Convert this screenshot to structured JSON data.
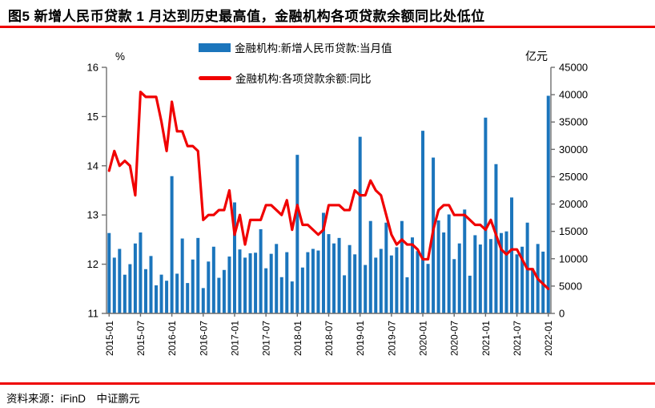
{
  "title": "图5 新增人民币贷款 1 月达到历史最高值，金融机构各项贷款余额同比处低位",
  "source": "资料来源：iFinD　中证鹏元",
  "colors": {
    "accent_red": "#ee0000",
    "bar_blue": "#1b75bc",
    "line_red": "#f00000",
    "axis_gray": "#6e6e6e",
    "text_black": "#000000"
  },
  "legend": [
    {
      "label": "金融机构:新增人民币贷款:当月值",
      "type": "bar"
    },
    {
      "label": "金融机构:各项贷款余额:同比",
      "type": "line"
    }
  ],
  "chart_data": {
    "type": "bar",
    "subtype": "bar+line dual-axis",
    "months": [
      "2015-01",
      "2015-02",
      "2015-03",
      "2015-04",
      "2015-05",
      "2015-06",
      "2015-07",
      "2015-08",
      "2015-09",
      "2015-10",
      "2015-11",
      "2015-12",
      "2016-01",
      "2016-02",
      "2016-03",
      "2016-04",
      "2016-05",
      "2016-06",
      "2016-07",
      "2016-08",
      "2016-09",
      "2016-10",
      "2016-11",
      "2016-12",
      "2017-01",
      "2017-02",
      "2017-03",
      "2017-04",
      "2017-05",
      "2017-06",
      "2017-07",
      "2017-08",
      "2017-09",
      "2017-10",
      "2017-11",
      "2017-12",
      "2018-01",
      "2018-02",
      "2018-03",
      "2018-04",
      "2018-05",
      "2018-06",
      "2018-07",
      "2018-08",
      "2018-09",
      "2018-10",
      "2018-11",
      "2018-12",
      "2019-01",
      "2019-02",
      "2019-03",
      "2019-04",
      "2019-05",
      "2019-06",
      "2019-07",
      "2019-08",
      "2019-09",
      "2019-10",
      "2019-11",
      "2019-12",
      "2020-01",
      "2020-02",
      "2020-03",
      "2020-04",
      "2020-05",
      "2020-06",
      "2020-07",
      "2020-08",
      "2020-09",
      "2020-10",
      "2020-11",
      "2020-12",
      "2021-01",
      "2021-02",
      "2021-03",
      "2021-04",
      "2021-05",
      "2021-06",
      "2021-07",
      "2021-08",
      "2021-09",
      "2021-10",
      "2021-11",
      "2021-12",
      "2022-01"
    ],
    "x_tick_labels": [
      "2015-01",
      "2015-07",
      "2016-01",
      "2016-07",
      "2017-01",
      "2017-07",
      "2018-01",
      "2018-07",
      "2019-01",
      "2019-07",
      "2020-01",
      "2020-07",
      "2021-01",
      "2021-07",
      "2022-01"
    ],
    "series": [
      {
        "name": "金融机构:新增人民币贷款:当月值",
        "type": "bar",
        "axis": "right",
        "unit": "亿元",
        "values": [
          14700,
          10200,
          11800,
          7079,
          9008,
          12791,
          14800,
          8096,
          10500,
          5136,
          7089,
          5978,
          25100,
          7266,
          13700,
          5556,
          9855,
          13800,
          4636,
          9487,
          12200,
          6513,
          7946,
          10400,
          20300,
          11700,
          10200,
          11000,
          11100,
          15400,
          8255,
          10900,
          12700,
          6632,
          11200,
          5844,
          29000,
          8393,
          11200,
          11800,
          11500,
          18400,
          14500,
          12800,
          13800,
          6970,
          12500,
          10800,
          32300,
          8858,
          16900,
          10200,
          11800,
          16600,
          10600,
          12100,
          16900,
          6613,
          13900,
          11400,
          33400,
          9057,
          28500,
          17000,
          14800,
          18100,
          9927,
          12800,
          19000,
          6898,
          14300,
          12600,
          35800,
          13600,
          27300,
          14700,
          15000,
          21200,
          10800,
          12200,
          16600,
          8262,
          12700,
          11300,
          39800
        ]
      },
      {
        "name": "金融机构:各项贷款余额:同比",
        "type": "line",
        "axis": "left",
        "unit": "%",
        "values": [
          13.9,
          14.3,
          14.0,
          14.1,
          14.0,
          13.4,
          15.5,
          15.4,
          15.4,
          15.4,
          14.9,
          14.3,
          15.3,
          14.7,
          14.7,
          14.4,
          14.4,
          14.3,
          12.9,
          13.0,
          13.0,
          13.1,
          13.1,
          13.5,
          12.6,
          13.0,
          12.4,
          12.9,
          12.9,
          12.9,
          13.2,
          13.2,
          13.1,
          13.0,
          13.3,
          12.7,
          13.2,
          12.8,
          12.8,
          12.7,
          12.6,
          12.7,
          13.2,
          13.2,
          13.2,
          13.1,
          13.1,
          13.5,
          13.4,
          13.4,
          13.7,
          13.5,
          13.4,
          13.0,
          12.6,
          12.4,
          12.5,
          12.4,
          12.4,
          12.3,
          12.1,
          12.1,
          12.7,
          13.1,
          13.2,
          13.2,
          13.0,
          13.0,
          13.0,
          12.9,
          12.8,
          12.8,
          12.7,
          12.9,
          12.6,
          12.3,
          12.2,
          12.3,
          12.3,
          12.1,
          11.9,
          11.9,
          11.7,
          11.6,
          11.5
        ]
      }
    ],
    "left_axis": {
      "label": "%",
      "min": 11,
      "max": 16,
      "ticks": [
        16,
        15,
        14,
        13,
        12,
        11
      ]
    },
    "right_axis": {
      "label": "亿元",
      "min": 0,
      "max": 45000,
      "ticks": [
        45000,
        40000,
        35000,
        30000,
        25000,
        20000,
        15000,
        10000,
        5000,
        0
      ]
    },
    "grid": false,
    "legend_position": "top-center"
  }
}
